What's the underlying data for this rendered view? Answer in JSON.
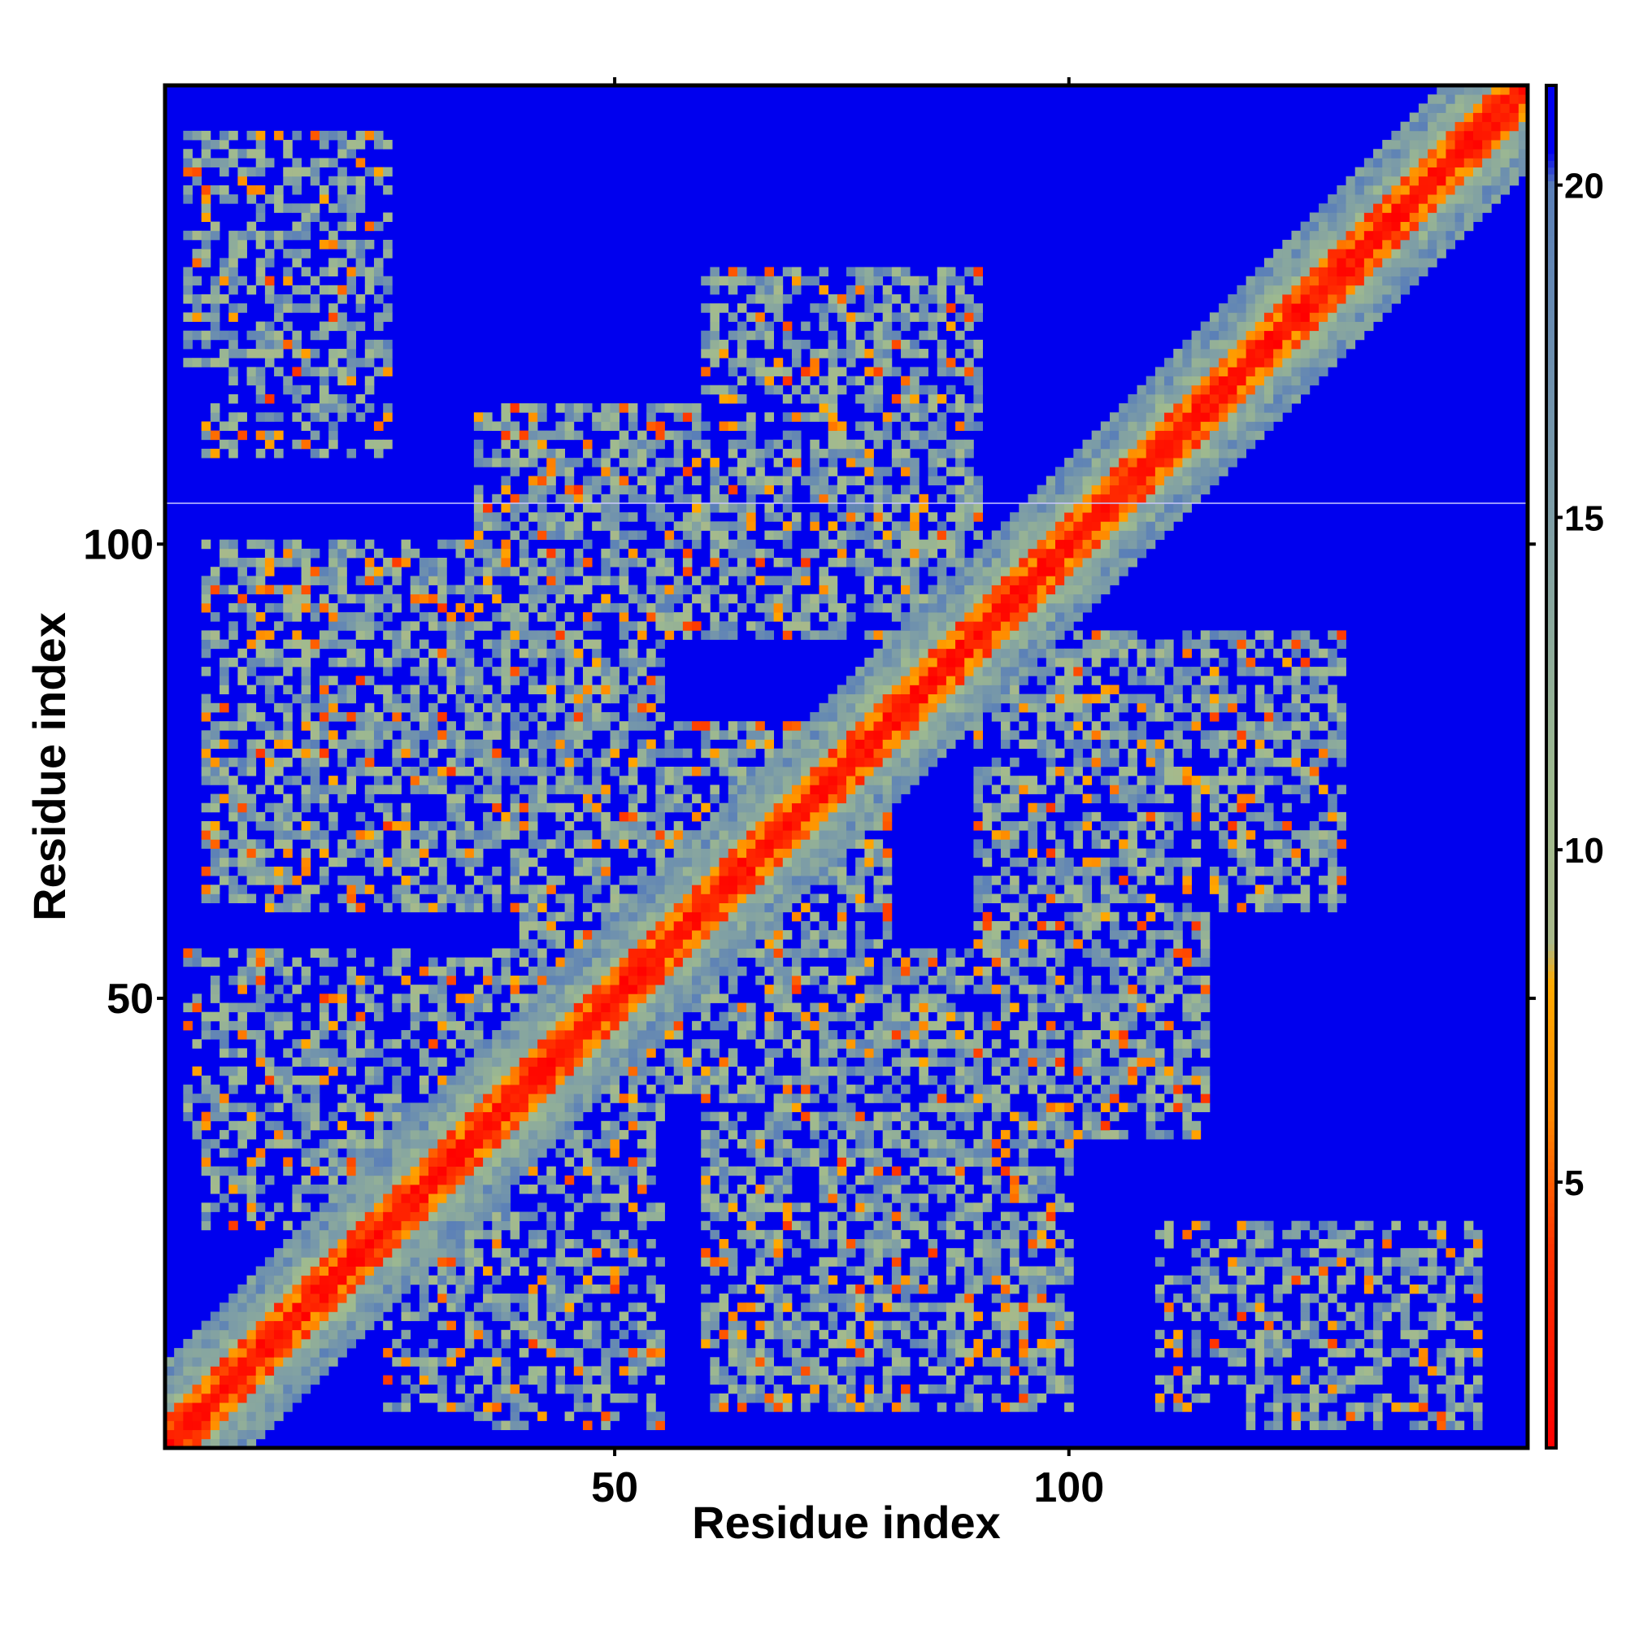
{
  "chart_data": {
    "type": "heatmap",
    "title": "",
    "xlabel": "Residue index",
    "ylabel": "Residue index",
    "n_residues": 150,
    "xlim": [
      1,
      150
    ],
    "ylim": [
      1,
      150
    ],
    "x_ticks": [
      {
        "value": 50,
        "label": "50"
      },
      {
        "value": 100,
        "label": "100"
      }
    ],
    "y_ticks": [
      {
        "value": 50,
        "label": "50"
      },
      {
        "value": 100,
        "label": "100"
      }
    ],
    "colorbar": {
      "range": [
        1,
        21.5
      ],
      "ticks": [
        {
          "value": 5,
          "label": "5"
        },
        {
          "value": 10,
          "label": "10"
        },
        {
          "value": 15,
          "label": "15"
        },
        {
          "value": 20,
          "label": "20"
        }
      ],
      "stops": [
        {
          "value": 1,
          "color": "#ff0000"
        },
        {
          "value": 4,
          "color": "#ff3300"
        },
        {
          "value": 6,
          "color": "#ff8800"
        },
        {
          "value": 8,
          "color": "#ffaa00"
        },
        {
          "value": 8.6,
          "color": "#a9b98a"
        },
        {
          "value": 11,
          "color": "#9fba8f"
        },
        {
          "value": 15,
          "color": "#7e9ea6"
        },
        {
          "value": 20,
          "color": "#5a7fb8"
        },
        {
          "value": 20.5,
          "color": "#0000ee"
        }
      ]
    },
    "background_color": "#0000ee",
    "diagonal_color": "#ff0000",
    "contact_regions": [
      {
        "x": [
          3,
          22
        ],
        "y": [
          120,
          145
        ],
        "strength": 0.5
      },
      {
        "x": [
          35,
          90
        ],
        "y": [
          90,
          115
        ],
        "strength": 0.6
      },
      {
        "x": [
          5,
          55
        ],
        "y": [
          60,
          100
        ],
        "strength": 0.6
      },
      {
        "x": [
          90,
          130
        ],
        "y": [
          60,
          90
        ],
        "strength": 0.6
      },
      {
        "x": [
          3,
          45
        ],
        "y": [
          35,
          55
        ],
        "strength": 0.5
      },
      {
        "x": [
          60,
          100
        ],
        "y": [
          5,
          45
        ],
        "strength": 0.6
      },
      {
        "x": [
          110,
          145
        ],
        "y": [
          5,
          25
        ],
        "strength": 0.5
      },
      {
        "x": [
          25,
          55
        ],
        "y": [
          5,
          25
        ],
        "strength": 0.5
      },
      {
        "x": [
          40,
          80
        ],
        "y": [
          40,
          70
        ],
        "strength": 0.6
      }
    ],
    "artifact_row": 104.5
  }
}
